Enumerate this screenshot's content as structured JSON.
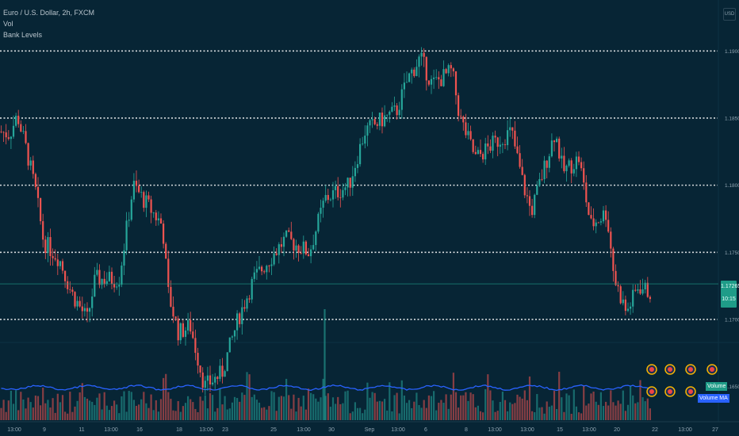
{
  "legend": {
    "title": "Euro / U.S. Dollar, 2h, FXCM",
    "vol": "Vol",
    "indicator": "Bank Levels"
  },
  "currency": "USD",
  "price_tag": {
    "price": "1.17265",
    "countdown": "10:15"
  },
  "volume_tags": {
    "volume": "Volume",
    "volume_ma": "Volume MA"
  },
  "colors": {
    "background": "#072535",
    "up": "#26a69a",
    "down": "#ef5350",
    "level_line": "#d9dde0",
    "volume_ma": "#2962ff",
    "axis_text": "#8fa3b0"
  },
  "chart_data": {
    "type": "candlestick",
    "symbol": "EURUSD",
    "timeframe": "2h",
    "ylim": [
      1.1625,
      1.1935
    ],
    "bank_levels": [
      1.19,
      1.185,
      1.18,
      1.175,
      1.17
    ],
    "last_price": 1.17265,
    "y_ticks": [
      "1.19000",
      "1.18500",
      "1.18000",
      "1.17500",
      "1.17000",
      "1.16500"
    ],
    "x_ticks": [
      "13:00",
      "9",
      "11",
      "13:00",
      "16",
      "18",
      "13:00",
      "23",
      "25",
      "13:00",
      "30",
      "Sep",
      "13:00",
      "6",
      "8",
      "13:00",
      "13:00",
      "15",
      "13:00",
      "20",
      "22",
      "13:00",
      "27"
    ],
    "path_anchors": [
      [
        0,
        1.184
      ],
      [
        12,
        1.1838
      ],
      [
        22,
        1.1852
      ],
      [
        35,
        1.1822
      ],
      [
        45,
        1.1795
      ],
      [
        55,
        1.1758
      ],
      [
        75,
        1.1745
      ],
      [
        90,
        1.172
      ],
      [
        110,
        1.17
      ],
      [
        120,
        1.173
      ],
      [
        150,
        1.173
      ],
      [
        168,
        1.18
      ],
      [
        180,
        1.179
      ],
      [
        205,
        1.177
      ],
      [
        212,
        1.172
      ],
      [
        225,
        1.169
      ],
      [
        240,
        1.1695
      ],
      [
        258,
        1.165
      ],
      [
        280,
        1.166
      ],
      [
        300,
        1.17
      ],
      [
        320,
        1.173
      ],
      [
        360,
        1.176
      ],
      [
        390,
        1.175
      ],
      [
        410,
        1.179
      ],
      [
        440,
        1.18
      ],
      [
        460,
        1.184
      ],
      [
        485,
        1.185
      ],
      [
        500,
        1.1855
      ],
      [
        515,
        1.188
      ],
      [
        530,
        1.1895
      ],
      [
        545,
        1.1875
      ],
      [
        570,
        1.1885
      ],
      [
        580,
        1.185
      ],
      [
        600,
        1.182
      ],
      [
        620,
        1.183
      ],
      [
        645,
        1.184
      ],
      [
        660,
        1.18
      ],
      [
        670,
        1.178
      ],
      [
        690,
        1.182
      ],
      [
        700,
        1.184
      ],
      [
        710,
        1.181
      ],
      [
        730,
        1.182
      ],
      [
        745,
        1.177
      ],
      [
        765,
        1.178
      ],
      [
        775,
        1.173
      ],
      [
        790,
        1.1705
      ],
      [
        805,
        1.1725
      ],
      [
        820,
        1.172
      ]
    ],
    "volume_ma_line": true
  }
}
